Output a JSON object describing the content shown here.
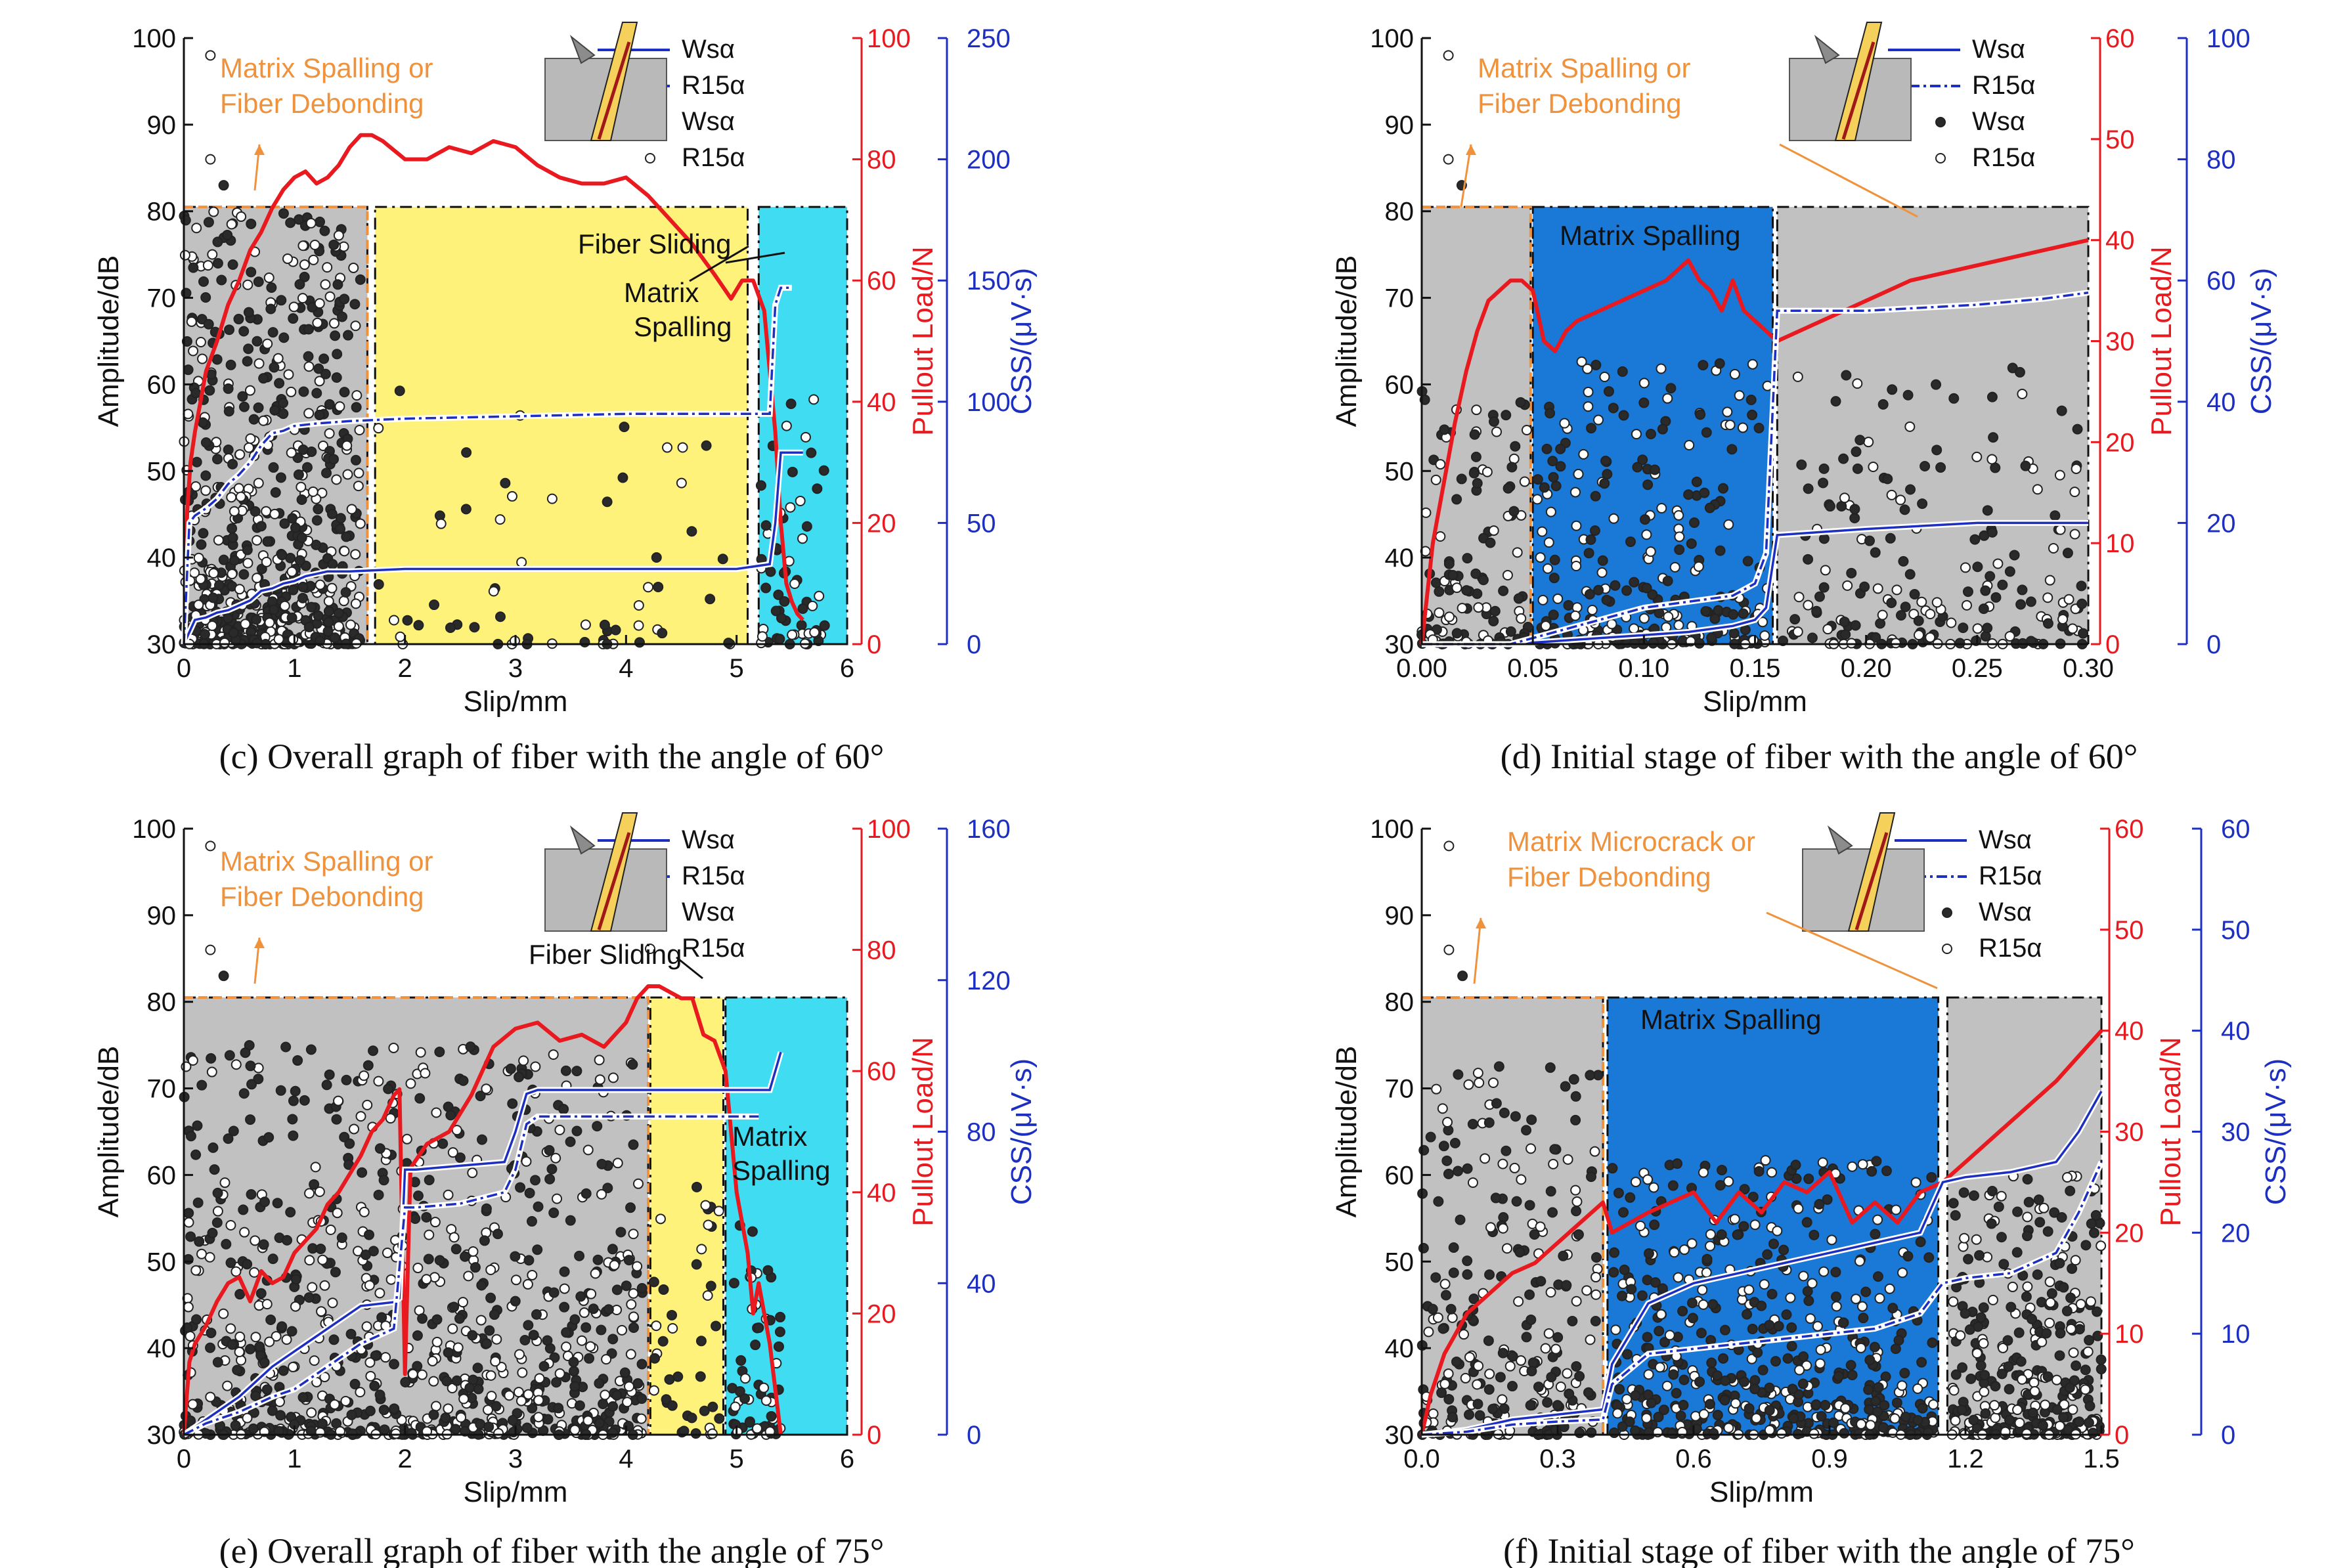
{
  "colors": {
    "load": "#e8191f",
    "css": "#1d2fc0",
    "stage_orange": "#f0923b",
    "region_gray": "#c1c1c1",
    "region_yellow": "#fff27a",
    "region_cyan": "#3fdcf2",
    "region_blue": "#1a78d6",
    "fiber": "#f5d05a",
    "fiber_edge": "#a01818"
  },
  "icons": [
    "fiber-pullout-sketch-icon"
  ],
  "chart_data": [
    {
      "type": "scatter",
      "caption": "(c) Overall graph of fiber with the angle of 60°",
      "xlabel": "Slip/mm",
      "ylabel": "Amplitude/dB",
      "y2label": "Pullout Load/N",
      "y3label": "CSS/(μV·s)",
      "xlim": [
        0,
        6
      ],
      "ylim": [
        30,
        100
      ],
      "y2lim": [
        0,
        100
      ],
      "y3lim": [
        0,
        250
      ],
      "xticks": [
        "0",
        "1",
        "2",
        "3",
        "4",
        "5",
        "6"
      ],
      "yticks": [
        "30",
        "40",
        "50",
        "60",
        "70",
        "80",
        "90",
        "100"
      ],
      "y2ticks": [
        "0",
        "20",
        "40",
        "60",
        "80",
        "100"
      ],
      "y3ticks": [
        "0",
        "50",
        "100",
        "150",
        "200",
        "250"
      ],
      "legend": [
        "Wsα",
        "R15α",
        "Wsα",
        "R15α"
      ],
      "regions": [
        {
          "type": "gray",
          "x": [
            0,
            1.66
          ]
        },
        {
          "type": "yellow",
          "x": [
            1.73,
            5.1
          ]
        },
        {
          "type": "cyan",
          "x": [
            5.2,
            6
          ]
        }
      ],
      "region_top": 80.5,
      "annotations": [
        "Matrix Spalling or",
        "Fiber Debonding",
        "Fiber Sliding",
        "Matrix",
        "Spalling"
      ],
      "series": [
        {
          "name": "Pullout Load",
          "axis": "y2",
          "x": [
            0,
            0.03,
            0.06,
            0.1,
            0.15,
            0.2,
            0.3,
            0.4,
            0.5,
            0.6,
            0.7,
            0.8,
            0.9,
            1.0,
            1.1,
            1.2,
            1.3,
            1.4,
            1.5,
            1.6,
            1.7,
            1.8,
            2.0,
            2.2,
            2.4,
            2.6,
            2.8,
            3.0,
            3.2,
            3.4,
            3.6,
            3.8,
            4.0,
            4.2,
            4.4,
            4.6,
            4.8,
            4.95,
            5.05,
            5.15,
            5.25,
            5.3,
            5.35,
            5.4,
            5.45,
            5.5,
            5.55,
            5.6
          ],
          "values": [
            0,
            22,
            30,
            35,
            40,
            45,
            50,
            56,
            60,
            65,
            68,
            72,
            75,
            77,
            78,
            76,
            77,
            79,
            82,
            84,
            84,
            83,
            80,
            80,
            82,
            81,
            83,
            82,
            79,
            77,
            76,
            76,
            77,
            74,
            70,
            66,
            61,
            57,
            60,
            60,
            55,
            45,
            35,
            20,
            10,
            7,
            5,
            4
          ]
        },
        {
          "name": "Wsα",
          "axis": "y3",
          "style": "solid",
          "x": [
            0,
            0.1,
            0.2,
            0.3,
            0.4,
            0.5,
            0.6,
            0.7,
            0.8,
            0.9,
            1.0,
            1.1,
            1.2,
            1.3,
            1.5,
            2.0,
            3.0,
            4.0,
            5.0,
            5.3,
            5.35,
            5.4,
            5.6
          ],
          "values": [
            0,
            10,
            11,
            13,
            14,
            16,
            18,
            22,
            23,
            25,
            26,
            28,
            29,
            30,
            30,
            31,
            31,
            31,
            31,
            33,
            50,
            79,
            79
          ]
        },
        {
          "name": "R15α",
          "axis": "y3",
          "style": "dashdot",
          "x": [
            0,
            0.05,
            0.1,
            0.2,
            0.3,
            0.4,
            0.5,
            0.6,
            0.7,
            0.8,
            0.9,
            1.0,
            1.2,
            1.5,
            2.0,
            3.0,
            4.0,
            5.0,
            5.3,
            5.35,
            5.4,
            5.5
          ],
          "values": [
            0,
            50,
            53,
            56,
            60,
            66,
            70,
            75,
            82,
            87,
            88,
            90,
            91,
            92,
            93,
            94,
            95,
            95,
            95,
            140,
            147,
            147
          ]
        }
      ]
    },
    {
      "type": "scatter",
      "caption": "(d) Initial stage of fiber with the angle of 60°",
      "xlabel": "Slip/mm",
      "ylabel": "Amplitude/dB",
      "y2label": "Pullout Load/N",
      "y3label": "CSS/(μV·s)",
      "xlim": [
        0,
        0.3
      ],
      "ylim": [
        30,
        100
      ],
      "y2lim": [
        0,
        60
      ],
      "y3lim": [
        0,
        100
      ],
      "xticks": [
        "0.00",
        "0.05",
        "0.10",
        "0.15",
        "0.20",
        "0.25",
        "0.30"
      ],
      "yticks": [
        "30",
        "40",
        "50",
        "60",
        "70",
        "80",
        "90",
        "100"
      ],
      "y2ticks": [
        "0",
        "10",
        "20",
        "30",
        "40",
        "50",
        "60"
      ],
      "y3ticks": [
        "0",
        "20",
        "40",
        "60",
        "80",
        "100"
      ],
      "legend": [
        "Wsα",
        "R15α",
        "Wsα",
        "R15α"
      ],
      "regions": [
        {
          "type": "gray",
          "x": [
            0,
            0.049
          ]
        },
        {
          "type": "blue",
          "x": [
            0.05,
            0.158
          ]
        },
        {
          "type": "gray",
          "x": [
            0.16,
            0.3
          ]
        }
      ],
      "region_top": 80.5,
      "annotations": [
        "Matrix Spalling or",
        "Fiber Debonding",
        "Matrix Spalling"
      ],
      "series": [
        {
          "name": "Pullout Load",
          "axis": "y2",
          "x": [
            0,
            0.005,
            0.01,
            0.015,
            0.02,
            0.025,
            0.03,
            0.035,
            0.04,
            0.045,
            0.05,
            0.055,
            0.06,
            0.065,
            0.07,
            0.08,
            0.09,
            0.1,
            0.11,
            0.12,
            0.125,
            0.13,
            0.135,
            0.14,
            0.145,
            0.15,
            0.155,
            0.16,
            0.18,
            0.2,
            0.22,
            0.24,
            0.26,
            0.28,
            0.3
          ],
          "values": [
            0,
            10,
            16,
            22,
            27,
            31,
            34,
            35,
            36,
            36,
            35,
            30,
            29,
            31,
            32,
            33,
            34,
            35,
            36,
            38,
            36,
            35,
            33,
            36,
            33,
            32,
            31,
            30,
            32,
            34,
            36,
            37,
            38,
            39,
            40
          ]
        },
        {
          "name": "Wsα",
          "axis": "y3",
          "style": "solid",
          "x": [
            0,
            0.04,
            0.06,
            0.08,
            0.1,
            0.12,
            0.14,
            0.15,
            0.155,
            0.16,
            0.2,
            0.25,
            0.3
          ],
          "values": [
            0,
            0,
            0.5,
            1,
            1.5,
            2,
            3,
            4,
            6,
            18,
            19,
            20,
            20
          ]
        },
        {
          "name": "R15α",
          "axis": "y3",
          "style": "dashdot",
          "x": [
            0,
            0.04,
            0.06,
            0.08,
            0.1,
            0.12,
            0.14,
            0.15,
            0.155,
            0.16,
            0.2,
            0.25,
            0.28,
            0.3
          ],
          "values": [
            0,
            0,
            2,
            4,
            6,
            7,
            8,
            10,
            15,
            55,
            55,
            56,
            57,
            58
          ]
        }
      ]
    },
    {
      "type": "scatter",
      "caption": "(e) Overall graph of fiber with the angle of 75°",
      "xlabel": "Slip/mm",
      "ylabel": "Amplitude/dB",
      "y2label": "Pullout Load/N",
      "y3label": "CSS/(μV·s)",
      "xlim": [
        0,
        6
      ],
      "ylim": [
        30,
        100
      ],
      "y2lim": [
        0,
        100
      ],
      "y3lim": [
        0,
        160
      ],
      "xticks": [
        "0",
        "1",
        "2",
        "3",
        "4",
        "5",
        "6"
      ],
      "yticks": [
        "30",
        "40",
        "50",
        "60",
        "70",
        "80",
        "90",
        "100"
      ],
      "y2ticks": [
        "0",
        "20",
        "40",
        "60",
        "80",
        "100"
      ],
      "y3ticks": [
        "0",
        "40",
        "80",
        "120",
        "160"
      ],
      "legend": [
        "Wsα",
        "R15α",
        "Wsα",
        "R15α"
      ],
      "regions": [
        {
          "type": "gray",
          "x": [
            0,
            4.2
          ]
        },
        {
          "type": "yellow",
          "x": [
            4.22,
            4.88
          ]
        },
        {
          "type": "cyan",
          "x": [
            4.9,
            6
          ]
        }
      ],
      "region_top": 80.5,
      "annotations": [
        "Matrix Spalling or",
        "Fiber Debonding",
        "Fiber Sliding",
        "Matrix",
        "Spalling"
      ],
      "series": [
        {
          "name": "Pullout Load",
          "axis": "y2",
          "x": [
            0,
            0.05,
            0.1,
            0.2,
            0.3,
            0.4,
            0.5,
            0.6,
            0.7,
            0.8,
            0.9,
            1.0,
            1.1,
            1.2,
            1.3,
            1.4,
            1.5,
            1.6,
            1.7,
            1.8,
            1.9,
            1.95,
            2.0,
            2.05,
            2.2,
            2.4,
            2.6,
            2.8,
            3.0,
            3.2,
            3.4,
            3.6,
            3.8,
            4.0,
            4.1,
            4.2,
            4.3,
            4.4,
            4.5,
            4.6,
            4.7,
            4.8,
            4.9,
            5.0,
            5.1,
            5.15,
            5.2,
            5.3,
            5.4
          ],
          "values": [
            0,
            12,
            15,
            18,
            22,
            25,
            26,
            22,
            27,
            25,
            26,
            30,
            32,
            34,
            38,
            40,
            43,
            46,
            50,
            52,
            56,
            57,
            10,
            44,
            48,
            50,
            56,
            64,
            67,
            68,
            65,
            66,
            64,
            68,
            72,
            74,
            74,
            73,
            72,
            72,
            66,
            65,
            60,
            40,
            30,
            20,
            25,
            15,
            0
          ]
        },
        {
          "name": "Wsα",
          "axis": "y3",
          "style": "solid",
          "x": [
            0,
            0.1,
            0.2,
            0.5,
            0.8,
            1.0,
            1.2,
            1.4,
            1.6,
            1.9,
            1.95,
            2.0,
            2.1,
            2.5,
            2.9,
            3.0,
            3.1,
            3.2,
            4.0,
            5.0,
            5.3,
            5.35,
            5.4
          ],
          "values": [
            0,
            2,
            4,
            10,
            18,
            22,
            26,
            30,
            34,
            35,
            36,
            70,
            70,
            71,
            72,
            80,
            90,
            91,
            91,
            91,
            91,
            96,
            101
          ]
        },
        {
          "name": "R15α",
          "axis": "y3",
          "style": "dashdot",
          "x": [
            0,
            0.2,
            0.5,
            0.8,
            1.0,
            1.2,
            1.4,
            1.6,
            1.9,
            2.0,
            2.1,
            2.5,
            2.9,
            3.0,
            3.1,
            3.2,
            4.0,
            5.0,
            5.2
          ],
          "values": [
            0,
            3,
            6,
            10,
            12,
            16,
            20,
            24,
            28,
            60,
            60,
            61,
            64,
            70,
            82,
            84,
            84,
            84,
            84
          ]
        }
      ]
    },
    {
      "type": "scatter",
      "caption": "(f) Initial stage of fiber with the angle of 75°",
      "xlabel": "Slip/mm",
      "ylabel": "Amplitude/dB",
      "y2label": "Pullout Load/N",
      "y3label": "CSS/(μV·s)",
      "xlim": [
        0,
        1.5
      ],
      "ylim": [
        30,
        100
      ],
      "y2lim": [
        0,
        60
      ],
      "y3lim": [
        0,
        60
      ],
      "xticks": [
        "0.0",
        "0.3",
        "0.6",
        "0.9",
        "1.2",
        "1.5"
      ],
      "yticks": [
        "30",
        "40",
        "50",
        "60",
        "70",
        "80",
        "90",
        "100"
      ],
      "y2ticks": [
        "0",
        "10",
        "20",
        "30",
        "40",
        "50",
        "60"
      ],
      "y3ticks": [
        "0",
        "10",
        "20",
        "30",
        "40",
        "50",
        "60"
      ],
      "legend": [
        "Wsα",
        "R15α",
        "Wsα",
        "R15α"
      ],
      "regions": [
        {
          "type": "gray",
          "x": [
            0,
            0.4
          ]
        },
        {
          "type": "blue",
          "x": [
            0.41,
            1.14
          ]
        },
        {
          "type": "gray",
          "x": [
            1.16,
            1.5
          ]
        }
      ],
      "region_top": 80.5,
      "annotations": [
        "Matrix Microcrack or",
        "Fiber Debonding",
        "Matrix Spalling"
      ],
      "series": [
        {
          "name": "Pullout Load",
          "axis": "y2",
          "x": [
            0,
            0.02,
            0.05,
            0.1,
            0.15,
            0.2,
            0.25,
            0.3,
            0.35,
            0.4,
            0.42,
            0.5,
            0.6,
            0.65,
            0.7,
            0.75,
            0.8,
            0.85,
            0.9,
            0.95,
            1.0,
            1.05,
            1.1,
            1.15,
            1.2,
            1.3,
            1.4,
            1.5
          ],
          "values": [
            0,
            4,
            8,
            12,
            14,
            16,
            17,
            19,
            21,
            23,
            20,
            22,
            24,
            21,
            24,
            22,
            25,
            24,
            26,
            21,
            23,
            21,
            24,
            25,
            27,
            31,
            35,
            40
          ]
        },
        {
          "name": "Wsα",
          "axis": "y3",
          "style": "solid",
          "x": [
            0,
            0.1,
            0.2,
            0.3,
            0.4,
            0.42,
            0.5,
            0.6,
            0.7,
            0.8,
            0.9,
            1.0,
            1.1,
            1.15,
            1.2,
            1.3,
            1.4,
            1.45,
            1.5
          ],
          "values": [
            0,
            0.5,
            1.5,
            2,
            2.5,
            7,
            13,
            15,
            16,
            17,
            18,
            19,
            20,
            25,
            25.5,
            26,
            27,
            30,
            34
          ]
        },
        {
          "name": "R15α",
          "axis": "y3",
          "style": "dashdot",
          "x": [
            0,
            0.1,
            0.2,
            0.3,
            0.4,
            0.42,
            0.5,
            0.6,
            0.7,
            0.8,
            0.9,
            1.0,
            1.1,
            1.15,
            1.2,
            1.3,
            1.4,
            1.45,
            1.5
          ],
          "values": [
            0,
            0.3,
            1,
            1.3,
            1.5,
            5,
            8,
            8.5,
            9,
            9.5,
            10,
            10.5,
            12,
            15,
            15.5,
            16,
            18,
            22,
            27
          ]
        }
      ]
    }
  ]
}
